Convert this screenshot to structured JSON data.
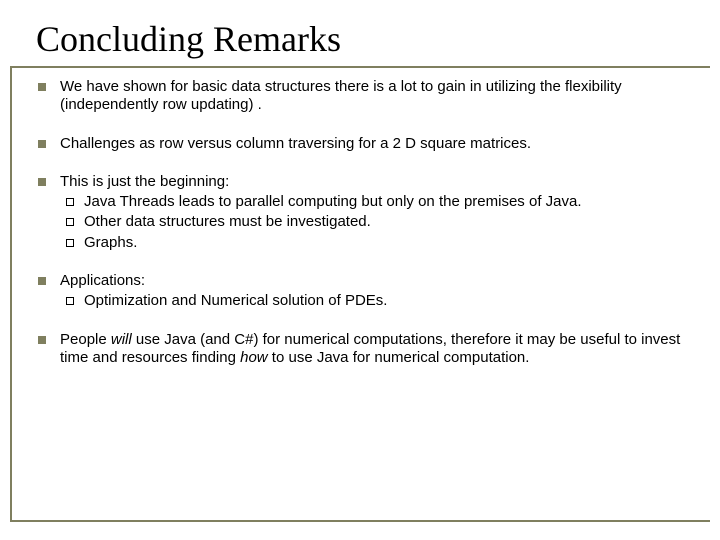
{
  "title": "Concluding Remarks",
  "bullets": {
    "b1": "We have shown for basic data structures there is a lot to gain in utilizing the flexibility (independently row updating) .",
    "b2": "Challenges as row versus column traversing for a 2 D square matrices.",
    "b3": "This is just the beginning:",
    "b3_sub": {
      "s1": "Java Threads leads to parallel computing but only on the premises of Java.",
      "s2": "Other data structures must be investigated.",
      "s3": "Graphs."
    },
    "b4": "Applications:",
    "b4_sub": {
      "s1": "Optimization and Numerical solution of PDEs."
    },
    "b5_pre": "People ",
    "b5_will": "will",
    "b5_mid": " use Java (and C#) for numerical computations, therefore it may be useful to invest time and resources finding ",
    "b5_how": "how",
    "b5_post": " to use Java for numerical computation."
  },
  "colors": {
    "accent": "#7f7f5f",
    "text": "#000000",
    "background": "#ffffff"
  },
  "fonts": {
    "title_family": "Times New Roman",
    "title_size_pt": 28,
    "body_family": "Arial",
    "body_size_pt": 12
  }
}
